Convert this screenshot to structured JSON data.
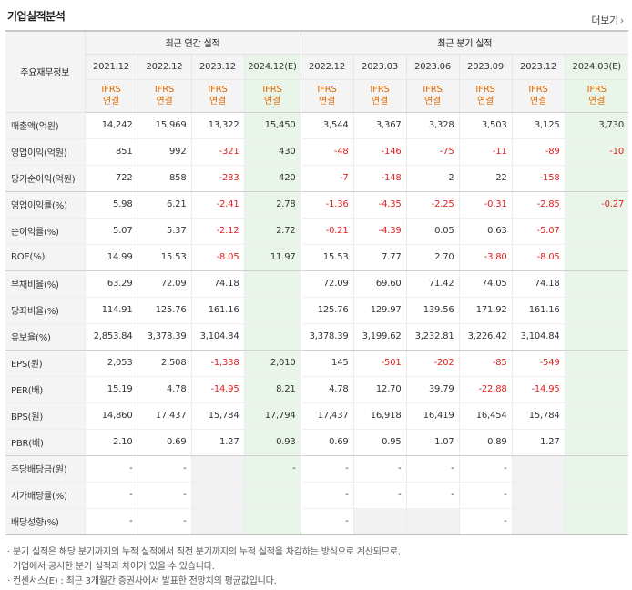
{
  "header": {
    "title": "기업실적분석",
    "more_label": "더보기",
    "more_icon": "chevron-right-icon"
  },
  "columns": {
    "row_header": "주요재무정보",
    "annual_group": "최근 연간 실적",
    "quarter_group": "최근 분기 실적",
    "annual": [
      "2021.12",
      "2022.12",
      "2023.12",
      "2024.12(E)"
    ],
    "quarter": [
      "2022.12",
      "2023.03",
      "2023.06",
      "2023.09",
      "2023.12",
      "2024.03(E)"
    ],
    "basis_line1": "IFRS",
    "basis_line2": "연결"
  },
  "rows": [
    {
      "label": "매출액(억원)",
      "values": [
        "14,242",
        "15,969",
        "13,322",
        "15,450",
        "3,544",
        "3,367",
        "3,328",
        "3,503",
        "3,125",
        "3,730"
      ]
    },
    {
      "label": "영업이익(억원)",
      "values": [
        "851",
        "992",
        "-321",
        "430",
        "-48",
        "-146",
        "-75",
        "-11",
        "-89",
        "-10"
      ]
    },
    {
      "label": "당기순이익(억원)",
      "values": [
        "722",
        "858",
        "-283",
        "420",
        "-7",
        "-148",
        "2",
        "22",
        "-158",
        ""
      ]
    },
    {
      "label": "영업이익률(%)",
      "values": [
        "5.98",
        "6.21",
        "-2.41",
        "2.78",
        "-1.36",
        "-4.35",
        "-2.25",
        "-0.31",
        "-2.85",
        "-0.27"
      ]
    },
    {
      "label": "순이익률(%)",
      "values": [
        "5.07",
        "5.37",
        "-2.12",
        "2.72",
        "-0.21",
        "-4.39",
        "0.05",
        "0.63",
        "-5.07",
        ""
      ]
    },
    {
      "label": "ROE(%)",
      "values": [
        "14.99",
        "15.53",
        "-8.05",
        "11.97",
        "15.53",
        "7.77",
        "2.70",
        "-3.80",
        "-8.05",
        ""
      ]
    },
    {
      "label": "부채비율(%)",
      "values": [
        "63.29",
        "72.09",
        "74.18",
        "",
        "72.09",
        "69.60",
        "71.42",
        "74.05",
        "74.18",
        ""
      ]
    },
    {
      "label": "당좌비율(%)",
      "values": [
        "114.91",
        "125.76",
        "161.16",
        "",
        "125.76",
        "129.97",
        "139.56",
        "171.92",
        "161.16",
        ""
      ]
    },
    {
      "label": "유보율(%)",
      "values": [
        "2,853.84",
        "3,378.39",
        "3,104.84",
        "",
        "3,378.39",
        "3,199.62",
        "3,232.81",
        "3,226.42",
        "3,104.84",
        ""
      ]
    },
    {
      "label": "EPS(원)",
      "values": [
        "2,053",
        "2,508",
        "-1,338",
        "2,010",
        "145",
        "-501",
        "-202",
        "-85",
        "-549",
        ""
      ]
    },
    {
      "label": "PER(배)",
      "values": [
        "15.19",
        "4.78",
        "-14.95",
        "8.21",
        "4.78",
        "12.70",
        "39.79",
        "-22.88",
        "-14.95",
        ""
      ]
    },
    {
      "label": "BPS(원)",
      "values": [
        "14,860",
        "17,437",
        "15,784",
        "17,794",
        "17,437",
        "16,918",
        "16,419",
        "16,454",
        "15,784",
        ""
      ]
    },
    {
      "label": "PBR(배)",
      "values": [
        "2.10",
        "0.69",
        "1.27",
        "0.93",
        "0.69",
        "0.95",
        "1.07",
        "0.89",
        "1.27",
        ""
      ]
    },
    {
      "label": "주당배당금(원)",
      "values": [
        "-",
        "-",
        "",
        "-",
        "-",
        "-",
        "-",
        "-",
        "",
        ""
      ]
    },
    {
      "label": "시가배당률(%)",
      "values": [
        "-",
        "-",
        "",
        "",
        "-",
        "-",
        "-",
        "-",
        "",
        ""
      ]
    },
    {
      "label": "배당성향(%)",
      "values": [
        "-",
        "-",
        "",
        "",
        "-",
        "",
        "",
        "-",
        "",
        ""
      ]
    }
  ],
  "notes": [
    "· 분기 실적은 해당 분기까지의 누적 실적에서 직전 분기까지의 누적 실적을 차감하는 방식으로 계산되므로,",
    "  기업에서 공시한 분기 실적과 차이가 있을 수 있습니다.",
    "· 컨센서스(E) : 최근 3개월간 증권사에서 발표한 전망치의 평균값입니다."
  ],
  "colors": {
    "negative": "#e02020",
    "basis": "#e06a00",
    "estimate_bg": "#eaf5ea",
    "blank_bg": "#f2f2f2",
    "header_bg": "#f4f4f4"
  }
}
